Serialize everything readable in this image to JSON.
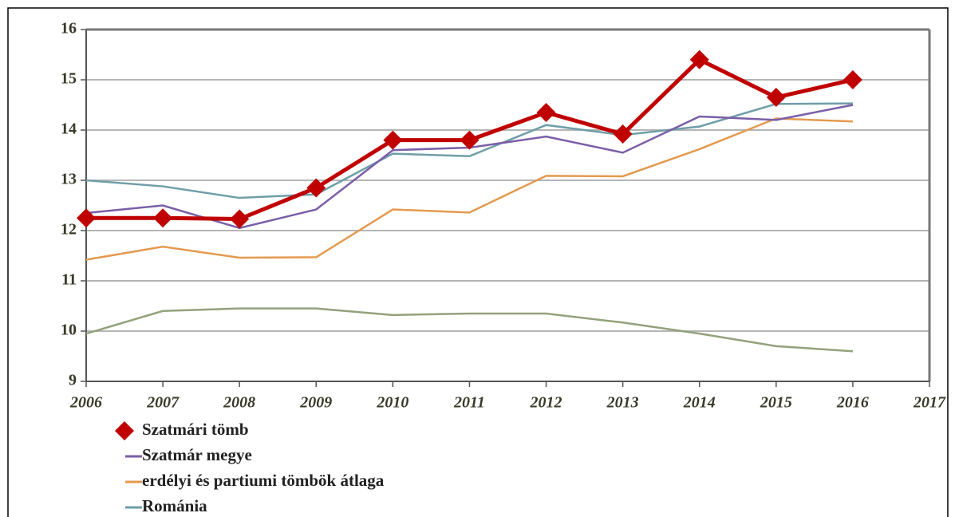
{
  "chart_data": {
    "type": "line",
    "x": [
      2006,
      2007,
      2008,
      2009,
      2010,
      2011,
      2012,
      2013,
      2014,
      2015,
      2016
    ],
    "series": [
      {
        "name": "Szatmári tömb",
        "color": "#c00000",
        "marker": "diamond",
        "values": [
          12.25,
          12.25,
          12.23,
          12.85,
          13.8,
          13.8,
          14.35,
          13.92,
          15.4,
          14.65,
          15.0
        ]
      },
      {
        "name": "Szatmár megye",
        "color": "#7b5ea7",
        "values": [
          12.35,
          12.5,
          12.05,
          12.42,
          13.6,
          13.65,
          13.87,
          13.55,
          14.27,
          14.2,
          14.5
        ]
      },
      {
        "name": "erdélyi és partiumi tömbök átlaga",
        "color": "#e39a4f",
        "values": [
          11.42,
          11.68,
          11.46,
          11.47,
          12.42,
          12.36,
          13.09,
          13.08,
          13.62,
          14.23,
          14.17
        ]
      },
      {
        "name": "Románia",
        "color": "#6f9ea8",
        "values": [
          13.0,
          12.88,
          12.65,
          12.72,
          13.53,
          13.48,
          14.1,
          13.9,
          14.07,
          14.52,
          14.53
        ]
      },
      {
        "color": "#92a27c",
        "values": [
          9.95,
          10.4,
          10.45,
          10.45,
          10.32,
          10.35,
          10.35,
          10.17,
          9.95,
          9.7,
          9.6
        ]
      }
    ],
    "xlim": [
      2006,
      2017
    ],
    "xticks": [
      2006,
      2007,
      2008,
      2009,
      2010,
      2011,
      2012,
      2013,
      2014,
      2015,
      2016,
      2017
    ],
    "ylim": [
      9,
      16
    ],
    "yticks": [
      9,
      10,
      11,
      12,
      13,
      14,
      15,
      16
    ],
    "grid": true
  }
}
